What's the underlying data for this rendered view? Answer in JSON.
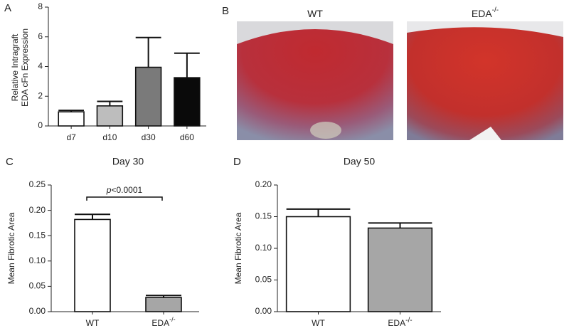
{
  "chart_data": [
    {
      "type": "bar",
      "panel_label": "A",
      "ylabel": [
        "Relative Intragraft",
        "EDA cFn Expression"
      ],
      "categories": [
        "d7",
        "d10",
        "d30",
        "d60"
      ],
      "category_superscripts": [
        null,
        null,
        null,
        null
      ],
      "values": [
        0.95,
        1.35,
        3.95,
        3.25
      ],
      "errors": [
        0.1,
        0.3,
        2.0,
        1.65
      ],
      "colors": [
        "#ffffff",
        "#bdbdbd",
        "#7a7a7a",
        "#0a0a0a"
      ],
      "ylim": [
        0,
        8
      ],
      "yticks": [
        0,
        2,
        4,
        6,
        8
      ]
    },
    {
      "type": "bar",
      "panel_label": "C",
      "title": "Day 30",
      "ylabel": [
        "Mean Fibrotic Area"
      ],
      "categories": [
        "WT",
        "EDA"
      ],
      "category_superscripts": [
        null,
        "-/-"
      ],
      "values": [
        0.182,
        0.028
      ],
      "errors": [
        0.01,
        0.004
      ],
      "colors": [
        "#ffffff",
        "#a6a6a6"
      ],
      "annotation": {
        "italic": "p",
        "text": "<0.0001"
      },
      "ylim": [
        0,
        0.25
      ],
      "yticks": [
        {
          "value": 0,
          "label": "0.00"
        },
        {
          "value": 0.05,
          "label": "0.05"
        },
        {
          "value": 0.1,
          "label": "0.10"
        },
        {
          "value": 0.15,
          "label": "0.15"
        },
        {
          "value": 0.2,
          "label": "0.20"
        },
        {
          "value": 0.25,
          "label": "0.25"
        }
      ]
    },
    {
      "type": "bar",
      "panel_label": "D",
      "title": "Day 50",
      "ylabel": [
        "Mean Fibrotic Area"
      ],
      "categories": [
        "WT",
        "EDA"
      ],
      "category_superscripts": [
        null,
        "-/-"
      ],
      "values": [
        0.15,
        0.132
      ],
      "errors": [
        0.012,
        0.008
      ],
      "colors": [
        "#ffffff",
        "#a6a6a6"
      ],
      "ylim": [
        0,
        0.2
      ],
      "yticks": [
        {
          "value": 0,
          "label": "0.00"
        },
        {
          "value": 0.05,
          "label": "0.05"
        },
        {
          "value": 0.1,
          "label": "0.10"
        },
        {
          "value": 0.15,
          "label": "0.15"
        },
        {
          "value": 0.2,
          "label": "0.20"
        }
      ]
    }
  ],
  "image_panel": {
    "panel_label": "B",
    "captions": [
      {
        "text": "WT",
        "sup": null
      },
      {
        "text": "EDA",
        "sup": "-/-"
      }
    ]
  }
}
